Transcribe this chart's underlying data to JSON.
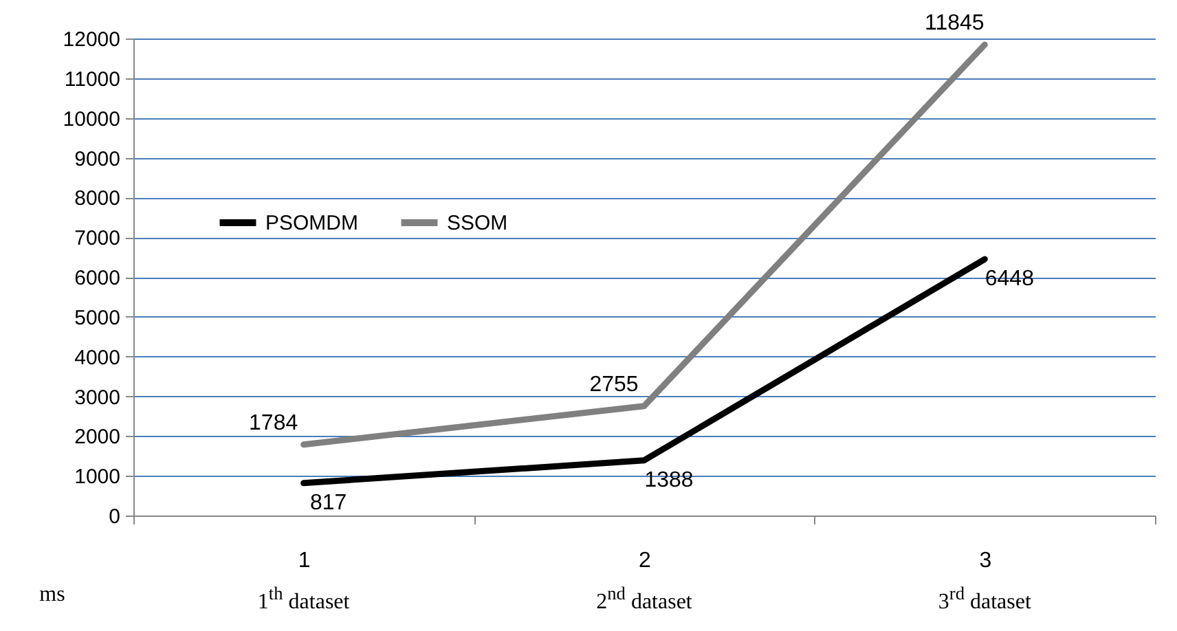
{
  "chart_data": {
    "type": "line",
    "ylabel": "ms",
    "categories": [
      "1",
      "2",
      "3"
    ],
    "annotations": [
      "1$^{th}$ dataset",
      "2$^{nd}$ dataset",
      "3$^{rd}$ dataset"
    ],
    "series": [
      {
        "name": "PSOMDM",
        "color": "#000000",
        "values": [
          817,
          1388,
          6448
        ]
      },
      {
        "name": "SSOM",
        "color": "#808080",
        "values": [
          1784,
          2755,
          11845
        ]
      }
    ],
    "ylim": [
      0,
      12000
    ],
    "yticks": [
      0,
      1000,
      2000,
      3000,
      4000,
      5000,
      6000,
      7000,
      8000,
      9000,
      10000,
      11000,
      12000
    ],
    "grid": "y",
    "legend": "top left",
    "data_labels": true,
    "marker": "none",
    "line_style": "solid"
  }
}
